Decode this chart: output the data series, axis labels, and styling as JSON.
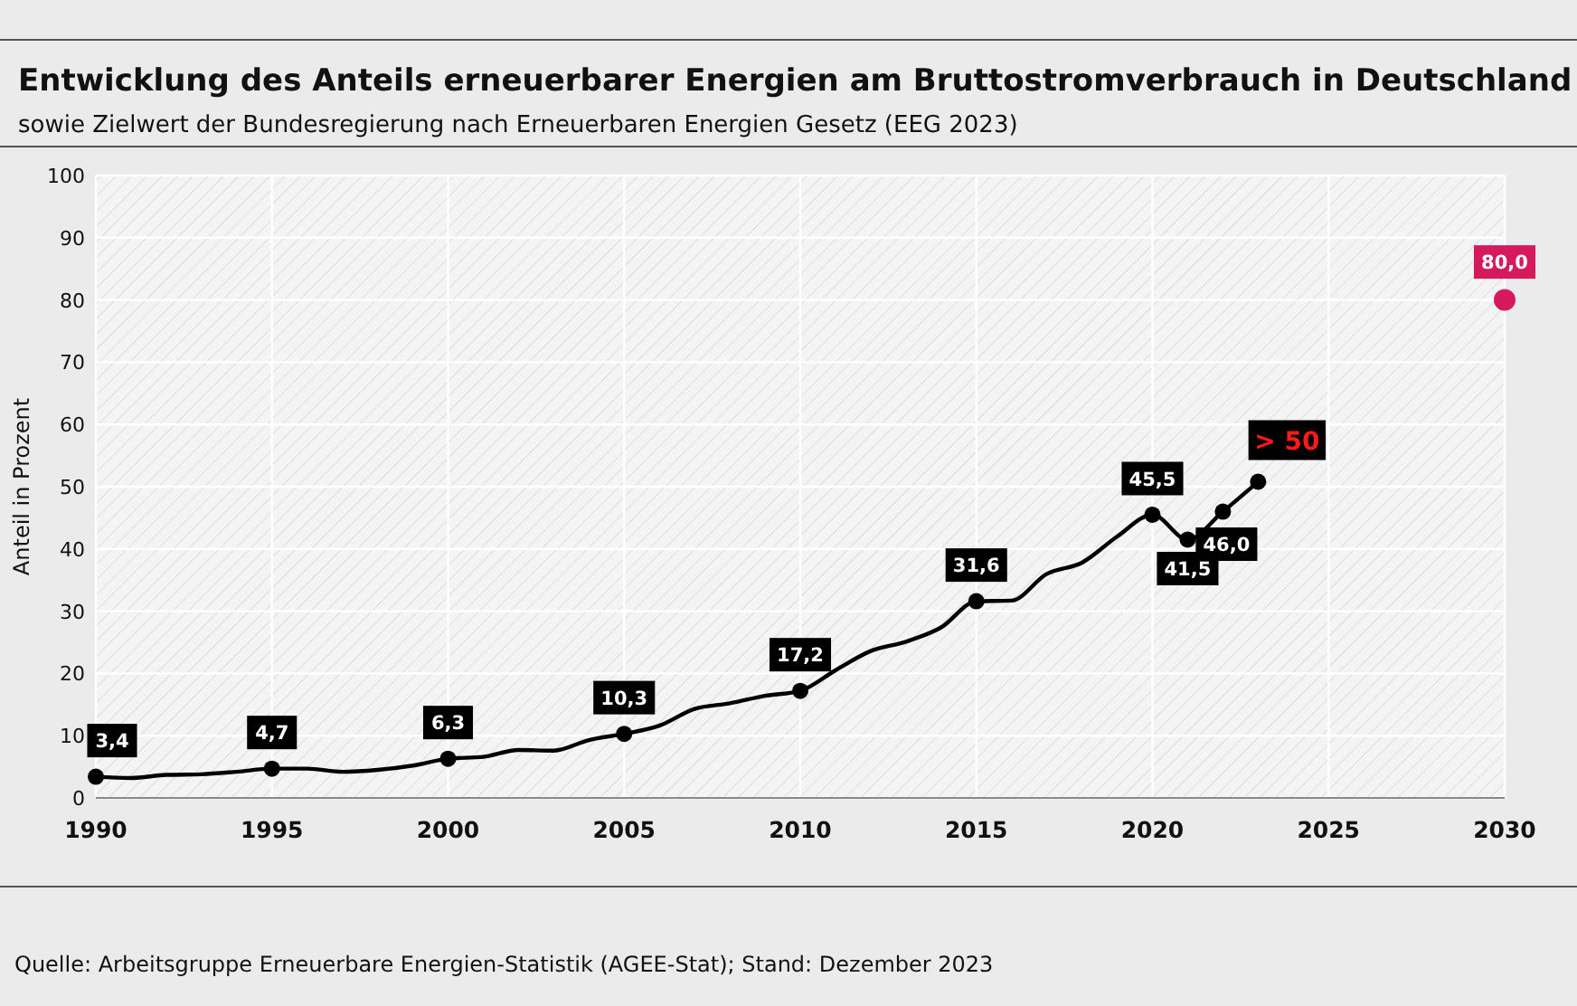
{
  "chart_data": {
    "type": "line",
    "title": "Entwicklung des Anteils erneuerbarer Energien am Bruttostromverbrauch in Deutschland",
    "subtitle": "sowie Zielwert der Bundesregierung nach Erneuerbaren Energien Gesetz (EEG 2023)",
    "ylabel": "Anteil in Prozent",
    "annotations": [
      "Quelle: Arbeitsgruppe Erneuerbare Energien-Statistik (AGEE-Stat); Stand: Dezember 2023"
    ],
    "xlim": [
      1990,
      2030
    ],
    "xticks": [
      1990,
      1995,
      2000,
      2005,
      2010,
      2015,
      2020,
      2025,
      2030
    ],
    "ylim": [
      0,
      100
    ],
    "yticks": [
      0,
      10,
      20,
      30,
      40,
      50,
      60,
      70,
      80,
      90,
      100
    ],
    "grid": true,
    "line_style": "solid",
    "series": [
      {
        "color": "#000000",
        "x": [
          1990,
          1991,
          1992,
          1993,
          1994,
          1995,
          1996,
          1997,
          1998,
          1999,
          2000,
          2001,
          2002,
          2003,
          2004,
          2005,
          2006,
          2007,
          2008,
          2009,
          2010,
          2011,
          2012,
          2013,
          2014,
          2015,
          2016,
          2017,
          2018,
          2019,
          2020,
          2021,
          2022,
          2023
        ],
        "values": [
          3.4,
          3.2,
          3.7,
          3.8,
          4.2,
          4.7,
          4.7,
          4.2,
          4.5,
          5.2,
          6.3,
          6.6,
          7.7,
          7.6,
          9.3,
          10.3,
          11.6,
          14.3,
          15.2,
          16.4,
          17.2,
          20.5,
          23.6,
          25.1,
          27.4,
          31.6,
          31.7,
          36.0,
          37.8,
          42.0,
          45.5,
          41.5,
          46.0,
          50.8
        ],
        "value_labels": [
          "3,4",
          null,
          null,
          null,
          null,
          "4,7",
          null,
          null,
          null,
          null,
          "6,3",
          null,
          null,
          null,
          null,
          "10,3",
          null,
          null,
          null,
          null,
          "17,2",
          null,
          null,
          null,
          null,
          "31,6",
          null,
          null,
          null,
          null,
          "45,5",
          "41,5",
          "46,0",
          "> 50"
        ]
      },
      {
        "type": "scatter",
        "color": "#d6195c",
        "x": [
          2030
        ],
        "values": [
          80
        ],
        "value_labels": [
          "80,0"
        ]
      }
    ]
  }
}
